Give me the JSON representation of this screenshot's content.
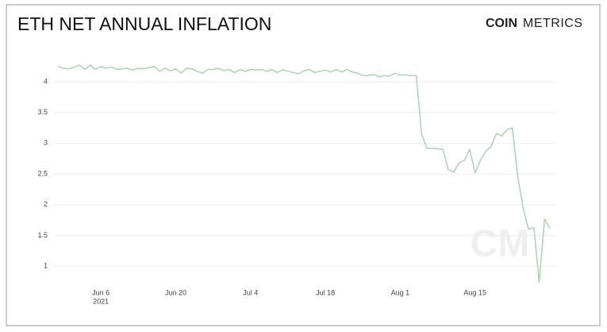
{
  "chart_data": {
    "type": "line",
    "title": "ETH NET ANNUAL INFLATION",
    "brand": {
      "bold": "COIN",
      "light": "METRICS"
    },
    "watermark": "CM",
    "x_sublabel": "2021",
    "categories": [
      null,
      null,
      null,
      null,
      null,
      null,
      null,
      null,
      "Jun 6",
      null,
      null,
      null,
      null,
      null,
      null,
      null,
      null,
      null,
      null,
      null,
      null,
      null,
      "Jun 20",
      null,
      null,
      null,
      null,
      null,
      null,
      null,
      null,
      null,
      null,
      null,
      null,
      null,
      "Jul 4",
      null,
      null,
      null,
      null,
      null,
      null,
      null,
      null,
      null,
      null,
      null,
      null,
      null,
      "Jul 18",
      null,
      null,
      null,
      null,
      null,
      null,
      null,
      null,
      null,
      null,
      null,
      null,
      null,
      "Aug 1",
      null,
      null,
      null,
      null,
      null,
      null,
      null,
      null,
      null,
      null,
      null,
      null,
      null,
      "Aug 15",
      null,
      null,
      null,
      null,
      null,
      null,
      null,
      null,
      null,
      null,
      null,
      null,
      null,
      null
    ],
    "series": [
      {
        "name": "ETH net annual inflation",
        "color": "#a9d3b4",
        "values": [
          4.25,
          4.22,
          4.21,
          4.24,
          4.27,
          4.2,
          4.27,
          4.2,
          4.25,
          4.22,
          4.24,
          4.2,
          4.21,
          4.22,
          4.19,
          4.22,
          4.21,
          4.23,
          4.25,
          4.17,
          4.22,
          4.18,
          4.21,
          4.14,
          4.22,
          4.21,
          4.17,
          4.14,
          4.2,
          4.2,
          4.22,
          4.18,
          4.2,
          4.15,
          4.2,
          4.17,
          4.2,
          4.19,
          4.2,
          4.17,
          4.2,
          4.15,
          4.2,
          4.17,
          4.15,
          4.13,
          4.18,
          4.2,
          4.15,
          4.17,
          4.19,
          4.16,
          4.2,
          4.16,
          4.2,
          4.16,
          4.14,
          4.1,
          4.1,
          4.12,
          4.08,
          4.1,
          4.09,
          4.14,
          4.11,
          4.11,
          4.1,
          4.1,
          3.15,
          2.92,
          2.92,
          2.91,
          2.9,
          2.57,
          2.53,
          2.68,
          2.72,
          2.9,
          2.52,
          2.72,
          2.87,
          2.95,
          3.16,
          3.12,
          3.22,
          3.25,
          2.45,
          1.95,
          1.6,
          1.63,
          0.74,
          1.77,
          1.62
        ]
      }
    ],
    "ylim": [
      0.68,
      4.49
    ],
    "yticks": [
      1,
      1.5,
      2,
      2.5,
      3,
      3.5,
      4
    ],
    "grid": true
  }
}
